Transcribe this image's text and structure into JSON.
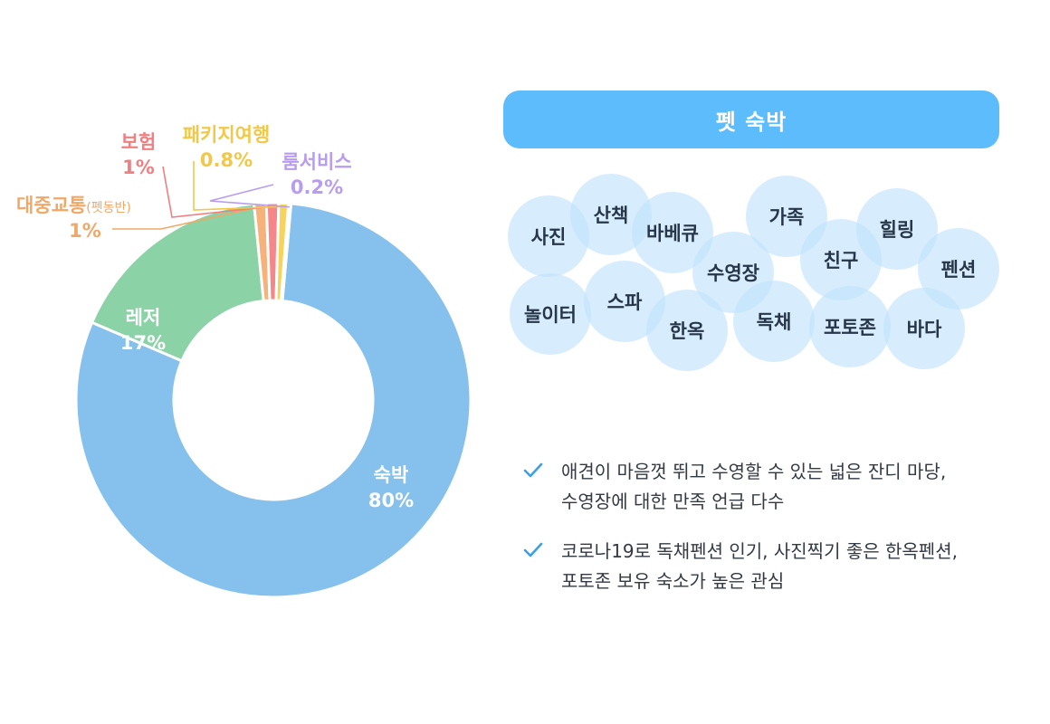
{
  "chart_data": {
    "type": "pie",
    "donut": true,
    "slices": [
      {
        "label": "숙박",
        "value_label": "80%",
        "value": 80,
        "color": "#85c1ec",
        "label_color": "#ffffff"
      },
      {
        "label": "레저",
        "value_label": "17%",
        "value": 17,
        "color": "#8bd3a6",
        "label_color": "#ffffff"
      },
      {
        "label": "대중교통",
        "sub_label": "(펫동반)",
        "value_label": "1%",
        "value": 1,
        "color": "#f5b27a",
        "label_color": "#f0a866"
      },
      {
        "label": "보험",
        "value_label": "1%",
        "value": 1,
        "color": "#f5868a",
        "label_color": "#f07f82"
      },
      {
        "label": "패키지여행",
        "value_label": "0.8%",
        "value": 0.8,
        "color": "#f6d35c",
        "label_color": "#f2c84a"
      },
      {
        "label": "룸서비스",
        "value_label": "0.2%",
        "value": 0.2,
        "color": "#c1a9f2",
        "label_color": "#b89cf0"
      }
    ]
  },
  "header": {
    "title": "펫 숙박",
    "color": "#5dbcfb"
  },
  "keywords": [
    "사진",
    "산책",
    "바베큐",
    "가족",
    "힐링",
    "수영장",
    "친구",
    "펜션",
    "놀이터",
    "스파",
    "한옥",
    "독채",
    "포토존",
    "바다"
  ],
  "notes": [
    {
      "line1": "애견이 마음껏 뛰고 수영할 수 있는 넓은 잔디 마당,",
      "line2": "수영장에 대한 만족 언급 다수"
    },
    {
      "line1": "코로나19로 독채펜션 인기, 사진찍기 좋은 한옥펜션,",
      "line2": "포토존 보유 숙소가 높은 관심"
    }
  ],
  "accent_color": "#3aa0e6"
}
